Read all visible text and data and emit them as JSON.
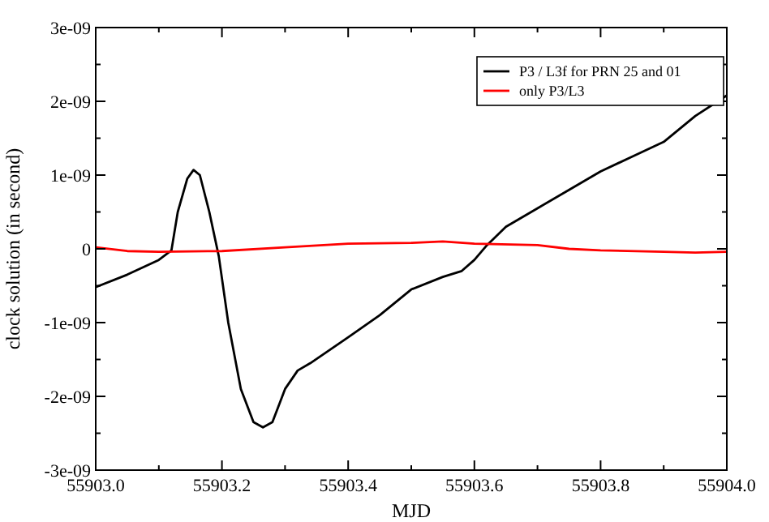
{
  "chart_data": {
    "type": "line",
    "xlabel": "MJD",
    "ylabel": "clock solution (in second)",
    "xlim": [
      55903.0,
      55904.0
    ],
    "ylim": [
      -3e-09,
      3e-09
    ],
    "xticks": [
      {
        "value": 55903.0,
        "label": "55903.0"
      },
      {
        "value": 55903.1,
        "label": null
      },
      {
        "value": 55903.2,
        "label": "55903.2"
      },
      {
        "value": 55903.3,
        "label": null
      },
      {
        "value": 55903.4,
        "label": "55903.4"
      },
      {
        "value": 55903.5,
        "label": null
      },
      {
        "value": 55903.6,
        "label": "55903.6"
      },
      {
        "value": 55903.7,
        "label": null
      },
      {
        "value": 55903.8,
        "label": "55903.8"
      },
      {
        "value": 55903.9,
        "label": null
      },
      {
        "value": 55904.0,
        "label": "55904.0"
      }
    ],
    "yticks": [
      {
        "value": -3e-09,
        "label": "-3e-09"
      },
      {
        "value": -2.5e-09,
        "label": null
      },
      {
        "value": -2e-09,
        "label": "-2e-09"
      },
      {
        "value": -1.5e-09,
        "label": null
      },
      {
        "value": -1e-09,
        "label": "-1e-09"
      },
      {
        "value": -5e-10,
        "label": null
      },
      {
        "value": 0,
        "label": "0"
      },
      {
        "value": 5e-10,
        "label": null
      },
      {
        "value": 1e-09,
        "label": "1e-09"
      },
      {
        "value": 1.5e-09,
        "label": null
      },
      {
        "value": 2e-09,
        "label": "2e-09"
      },
      {
        "value": 2.5e-09,
        "label": null
      },
      {
        "value": 3e-09,
        "label": "3e-09"
      }
    ],
    "grid": false,
    "legend": "top right",
    "marker": "none",
    "line_style": "solid",
    "series": [
      {
        "name": "P3 / L3f for PRN 25 and 01",
        "color": "#000000",
        "x": [
          55903.0,
          55903.05,
          55903.1,
          55903.12,
          55903.13,
          55903.145,
          55903.155,
          55903.165,
          55903.18,
          55903.195,
          55903.21,
          55903.23,
          55903.25,
          55903.265,
          55903.28,
          55903.3,
          55903.32,
          55903.34,
          55903.4,
          55903.45,
          55903.5,
          55903.55,
          55903.58,
          55903.6,
          55903.62,
          55903.65,
          55903.7,
          55903.75,
          55903.8,
          55903.85,
          55903.9,
          55903.95,
          55904.0
        ],
        "values": [
          -5.2e-10,
          -3.5e-10,
          -1.5e-10,
          -2e-11,
          5e-10,
          9.5e-10,
          1.07e-09,
          1e-09,
          5e-10,
          -1e-10,
          -1e-09,
          -1.9e-09,
          -2.35e-09,
          -2.42e-09,
          -2.35e-09,
          -1.9e-09,
          -1.65e-09,
          -1.55e-09,
          -1.2e-09,
          -9e-10,
          -5.5e-10,
          -3.8e-10,
          -3e-10,
          -1.5e-10,
          5e-11,
          3e-10,
          5.5e-10,
          8e-10,
          1.05e-09,
          1.25e-09,
          1.45e-09,
          1.8e-09,
          2.08e-09
        ]
      },
      {
        "name": "only P3/L3",
        "color": "#ff0000",
        "x": [
          55903.0,
          55903.05,
          55903.1,
          55903.2,
          55903.3,
          55903.4,
          55903.5,
          55903.55,
          55903.6,
          55903.7,
          55903.75,
          55903.8,
          55903.9,
          55903.95,
          55904.0
        ],
        "values": [
          2e-11,
          -3e-11,
          -4e-11,
          -3e-11,
          2e-11,
          7e-11,
          8e-11,
          1e-10,
          7e-11,
          5e-11,
          0,
          -2e-11,
          -4e-11,
          -5e-11,
          -4e-11
        ]
      }
    ]
  }
}
